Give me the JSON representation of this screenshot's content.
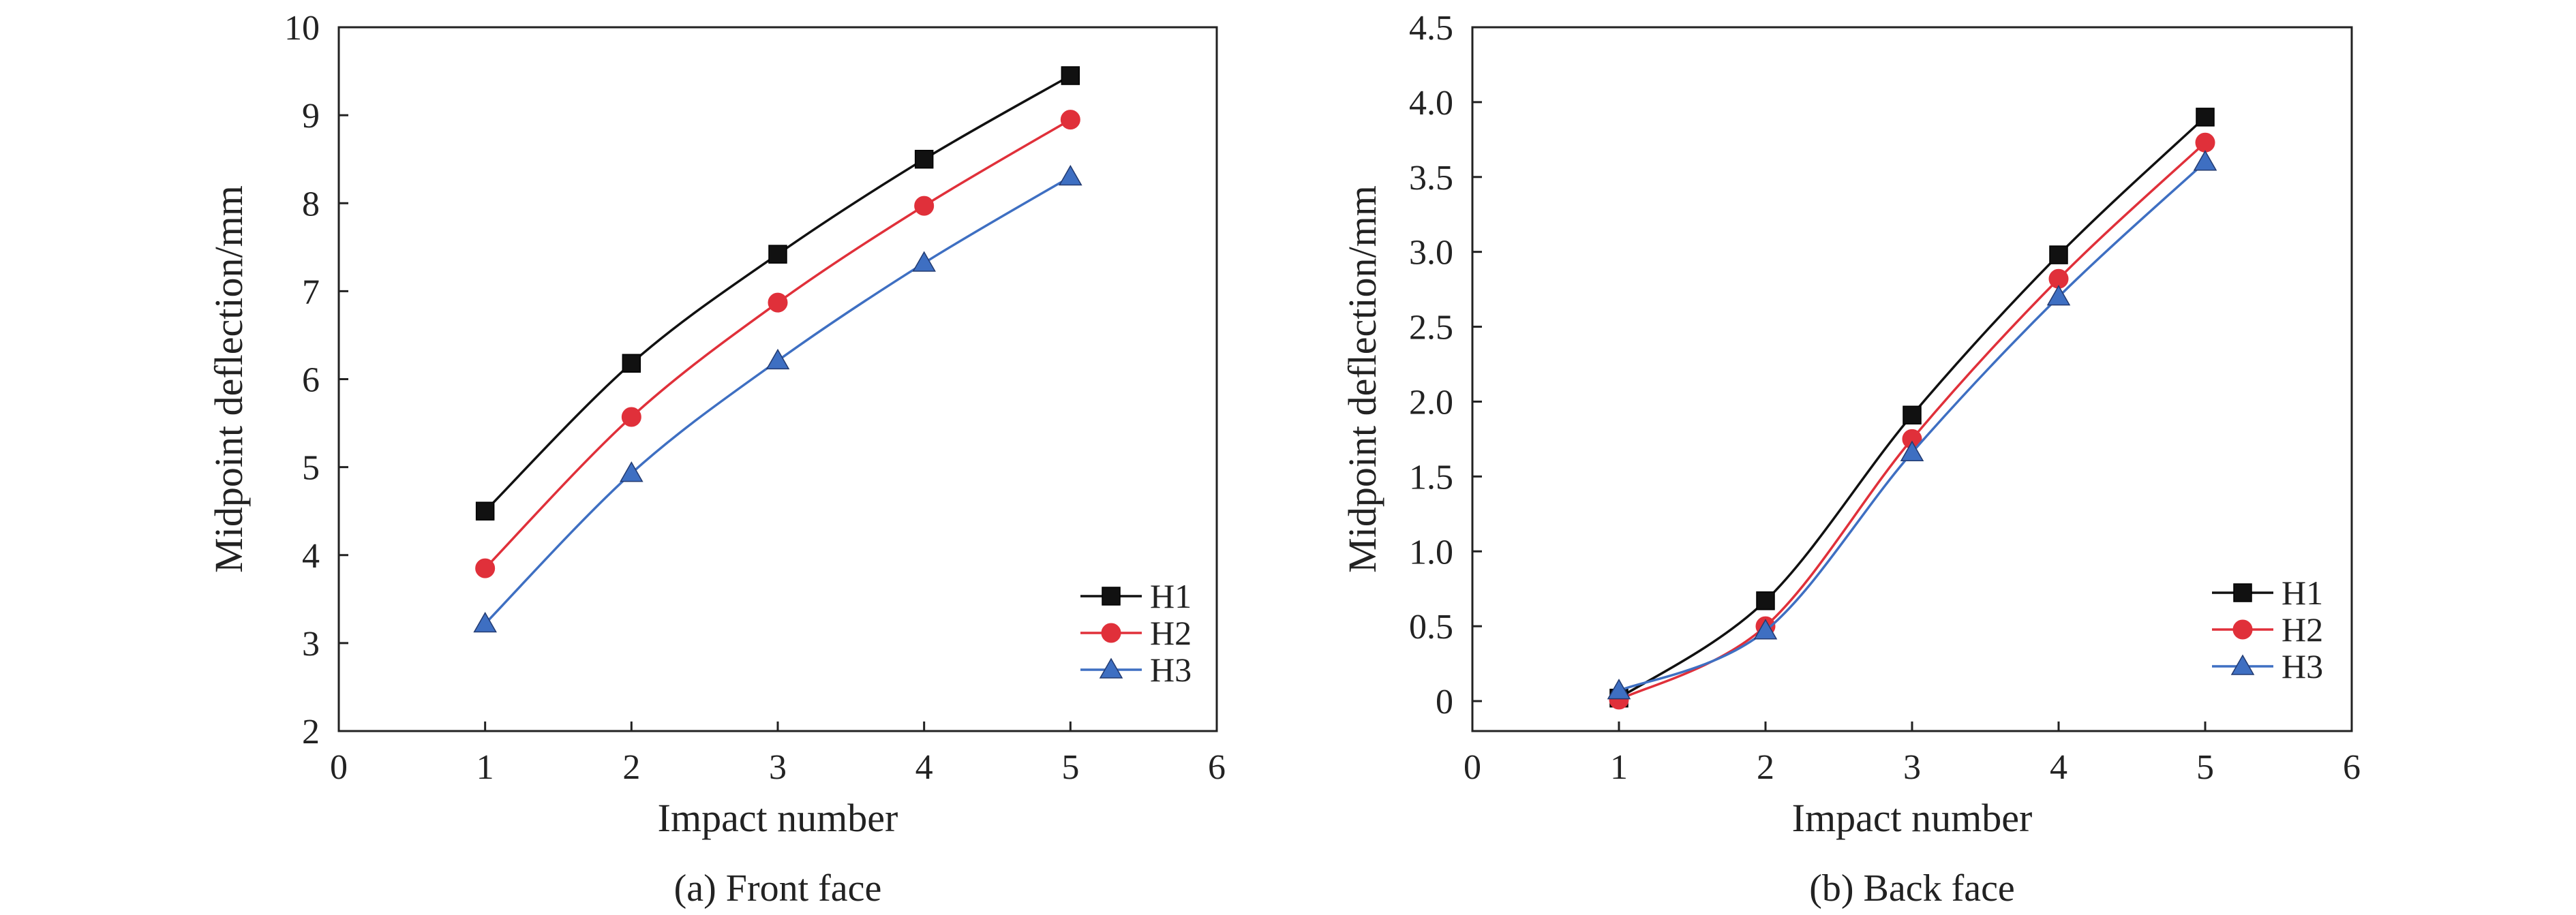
{
  "chart_data": [
    {
      "type": "line",
      "caption": "(a) Front face",
      "xlabel": "Impact number",
      "ylabel": "Midpoint deflection/mm",
      "xlim": [
        0,
        6
      ],
      "ylim": [
        2,
        10
      ],
      "xticks": [
        "0",
        "1",
        "2",
        "3",
        "4",
        "5",
        "6"
      ],
      "yticks": [
        "2",
        "3",
        "4",
        "5",
        "6",
        "7",
        "8",
        "9",
        "10"
      ],
      "x": [
        1,
        2,
        3,
        4,
        5
      ],
      "legend_position": "bottom-right",
      "grid": false,
      "series": [
        {
          "name": "H1",
          "marker": "square",
          "color": "#111111",
          "values": [
            4.5,
            6.18,
            7.42,
            8.5,
            9.45
          ]
        },
        {
          "name": "H2",
          "marker": "circle",
          "color": "#e0303a",
          "values": [
            3.85,
            5.57,
            6.87,
            7.97,
            8.95
          ]
        },
        {
          "name": "H3",
          "marker": "triangle",
          "color": "#3e6fc2",
          "values": [
            3.22,
            4.93,
            6.21,
            7.32,
            8.3
          ]
        }
      ]
    },
    {
      "type": "line",
      "caption": "(b) Back face",
      "xlabel": "Impact number",
      "ylabel": "Midpoint deflection/mm",
      "xlim": [
        0,
        6
      ],
      "ylim": [
        -0.2,
        4.5
      ],
      "xticks": [
        "0",
        "1",
        "2",
        "3",
        "4",
        "5",
        "6"
      ],
      "yticks": [
        "0",
        "0.5",
        "1.0",
        "1.5",
        "2.0",
        "2.5",
        "3.0",
        "3.5",
        "4.0",
        "4.5"
      ],
      "x": [
        1,
        2,
        3,
        4,
        5
      ],
      "legend_position": "bottom-right",
      "grid": false,
      "series": [
        {
          "name": "H1",
          "marker": "square",
          "color": "#111111",
          "values": [
            0.02,
            0.67,
            1.91,
            2.98,
            3.9
          ]
        },
        {
          "name": "H2",
          "marker": "circle",
          "color": "#e0303a",
          "values": [
            0.01,
            0.5,
            1.75,
            2.82,
            3.73
          ]
        },
        {
          "name": "H3",
          "marker": "triangle",
          "color": "#3e6fc2",
          "values": [
            0.07,
            0.47,
            1.66,
            2.7,
            3.6
          ]
        }
      ]
    }
  ]
}
